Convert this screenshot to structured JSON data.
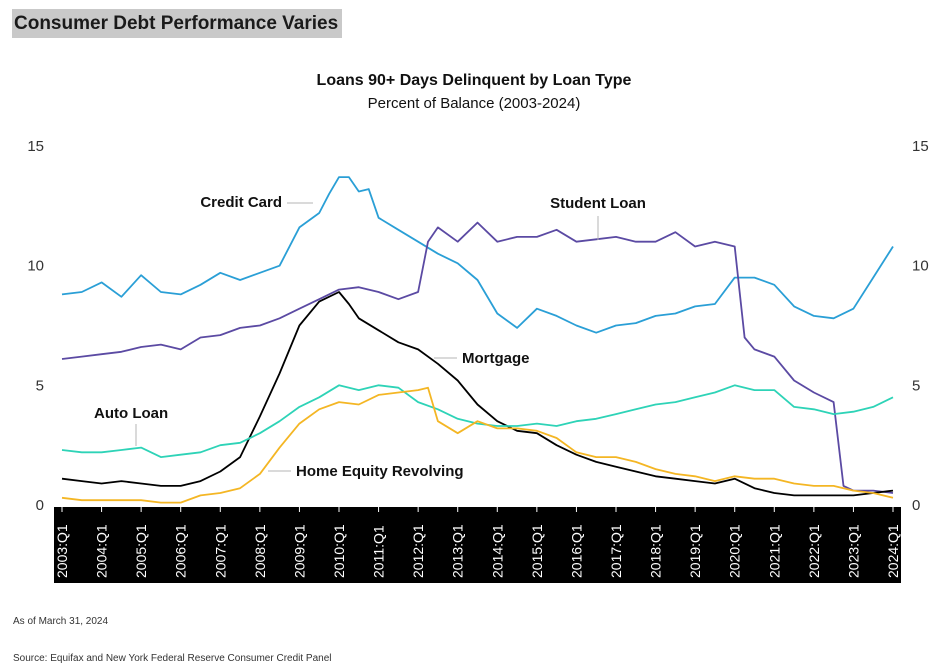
{
  "page": {
    "title": "Consumer Debt Performance Varies",
    "as_of": "As of March 31, 2024",
    "source": "Source: Equifax and New York Federal Reserve Consumer Credit Panel"
  },
  "chart_data": {
    "type": "line",
    "title": "Loans 90+ Days Delinquent by Loan Type",
    "subtitle": "Percent of Balance (2003-2024)",
    "ylim": [
      0,
      15
    ],
    "yticks": [
      0,
      5,
      10,
      15
    ],
    "x_start": "2003:Q1",
    "x_end": "2024:Q1",
    "x_tick_labels": [
      "2003:Q1",
      "2004:Q1",
      "2005:Q1",
      "2006:Q1",
      "2007:Q1",
      "2008:Q1",
      "2009:Q1",
      "2010:Q1",
      "2011:Q1",
      "2012:Q1",
      "2013:Q1",
      "2014:Q1",
      "2015:Q1",
      "2016:Q1",
      "2017:Q1",
      "2018:Q1",
      "2019:Q1",
      "2020:Q1",
      "2021:Q1",
      "2022:Q1",
      "2023:Q1",
      "2024:Q1"
    ],
    "colors": {
      "credit_card": "#2a9fd6",
      "student_loan": "#5b4aa3",
      "mortgage": "#000000",
      "auto_loan": "#2ed3b7",
      "home_equity_revolving": "#f4b624",
      "x_axis_band": "#000000"
    },
    "series": [
      {
        "name": "Credit Card",
        "color": "#2a9fd6",
        "points": [
          [
            "2003:Q1",
            8.8
          ],
          [
            "2003:Q3",
            8.9
          ],
          [
            "2004:Q1",
            9.3
          ],
          [
            "2004:Q3",
            8.7
          ],
          [
            "2005:Q1",
            9.6
          ],
          [
            "2005:Q3",
            8.9
          ],
          [
            "2006:Q1",
            8.8
          ],
          [
            "2006:Q3",
            9.2
          ],
          [
            "2007:Q1",
            9.7
          ],
          [
            "2007:Q3",
            9.4
          ],
          [
            "2008:Q1",
            9.7
          ],
          [
            "2008:Q3",
            10.0
          ],
          [
            "2009:Q1",
            11.6
          ],
          [
            "2009:Q3",
            12.2
          ],
          [
            "2009:Q4",
            13.0
          ],
          [
            "2010:Q1",
            13.7
          ],
          [
            "2010:Q2",
            13.7
          ],
          [
            "2010:Q3",
            13.1
          ],
          [
            "2010:Q4",
            13.2
          ],
          [
            "2011:Q1",
            12.0
          ],
          [
            "2011:Q3",
            11.5
          ],
          [
            "2012:Q1",
            11.0
          ],
          [
            "2012:Q3",
            10.5
          ],
          [
            "2013:Q1",
            10.1
          ],
          [
            "2013:Q3",
            9.4
          ],
          [
            "2014:Q1",
            8.0
          ],
          [
            "2014:Q3",
            7.4
          ],
          [
            "2015:Q1",
            8.2
          ],
          [
            "2015:Q3",
            7.9
          ],
          [
            "2016:Q1",
            7.5
          ],
          [
            "2016:Q3",
            7.2
          ],
          [
            "2017:Q1",
            7.5
          ],
          [
            "2017:Q3",
            7.6
          ],
          [
            "2018:Q1",
            7.9
          ],
          [
            "2018:Q3",
            8.0
          ],
          [
            "2019:Q1",
            8.3
          ],
          [
            "2019:Q3",
            8.4
          ],
          [
            "2020:Q1",
            9.5
          ],
          [
            "2020:Q3",
            9.5
          ],
          [
            "2021:Q1",
            9.2
          ],
          [
            "2021:Q3",
            8.3
          ],
          [
            "2022:Q1",
            7.9
          ],
          [
            "2022:Q3",
            7.8
          ],
          [
            "2023:Q1",
            8.2
          ],
          [
            "2023:Q3",
            9.5
          ],
          [
            "2024:Q1",
            10.8
          ]
        ]
      },
      {
        "name": "Student Loan",
        "color": "#5b4aa3",
        "points": [
          [
            "2003:Q1",
            6.1
          ],
          [
            "2003:Q3",
            6.2
          ],
          [
            "2004:Q1",
            6.3
          ],
          [
            "2004:Q3",
            6.4
          ],
          [
            "2005:Q1",
            6.6
          ],
          [
            "2005:Q3",
            6.7
          ],
          [
            "2006:Q1",
            6.5
          ],
          [
            "2006:Q3",
            7.0
          ],
          [
            "2007:Q1",
            7.1
          ],
          [
            "2007:Q3",
            7.4
          ],
          [
            "2008:Q1",
            7.5
          ],
          [
            "2008:Q3",
            7.8
          ],
          [
            "2009:Q1",
            8.2
          ],
          [
            "2009:Q3",
            8.6
          ],
          [
            "2010:Q1",
            9.0
          ],
          [
            "2010:Q3",
            9.1
          ],
          [
            "2011:Q1",
            8.9
          ],
          [
            "2011:Q3",
            8.6
          ],
          [
            "2012:Q1",
            8.9
          ],
          [
            "2012:Q2",
            11.0
          ],
          [
            "2012:Q3",
            11.6
          ],
          [
            "2013:Q1",
            11.0
          ],
          [
            "2013:Q3",
            11.8
          ],
          [
            "2014:Q1",
            11.0
          ],
          [
            "2014:Q3",
            11.2
          ],
          [
            "2015:Q1",
            11.2
          ],
          [
            "2015:Q3",
            11.5
          ],
          [
            "2016:Q1",
            11.0
          ],
          [
            "2016:Q3",
            11.1
          ],
          [
            "2017:Q1",
            11.2
          ],
          [
            "2017:Q3",
            11.0
          ],
          [
            "2018:Q1",
            11.0
          ],
          [
            "2018:Q3",
            11.4
          ],
          [
            "2019:Q1",
            10.8
          ],
          [
            "2019:Q3",
            11.0
          ],
          [
            "2020:Q1",
            10.8
          ],
          [
            "2020:Q2",
            7.0
          ],
          [
            "2020:Q3",
            6.5
          ],
          [
            "2021:Q1",
            6.2
          ],
          [
            "2021:Q3",
            5.2
          ],
          [
            "2022:Q1",
            4.7
          ],
          [
            "2022:Q3",
            4.3
          ],
          [
            "2022:Q4",
            0.8
          ],
          [
            "2023:Q1",
            0.6
          ],
          [
            "2023:Q3",
            0.6
          ],
          [
            "2024:Q1",
            0.5
          ]
        ]
      },
      {
        "name": "Mortgage",
        "color": "#000000",
        "points": [
          [
            "2003:Q1",
            1.1
          ],
          [
            "2003:Q3",
            1.0
          ],
          [
            "2004:Q1",
            0.9
          ],
          [
            "2004:Q3",
            1.0
          ],
          [
            "2005:Q1",
            0.9
          ],
          [
            "2005:Q3",
            0.8
          ],
          [
            "2006:Q1",
            0.8
          ],
          [
            "2006:Q3",
            1.0
          ],
          [
            "2007:Q1",
            1.4
          ],
          [
            "2007:Q3",
            2.0
          ],
          [
            "2008:Q1",
            3.7
          ],
          [
            "2008:Q3",
            5.5
          ],
          [
            "2009:Q1",
            7.5
          ],
          [
            "2009:Q3",
            8.5
          ],
          [
            "2010:Q1",
            8.9
          ],
          [
            "2010:Q2",
            8.4
          ],
          [
            "2010:Q3",
            7.8
          ],
          [
            "2011:Q1",
            7.3
          ],
          [
            "2011:Q3",
            6.8
          ],
          [
            "2012:Q1",
            6.5
          ],
          [
            "2012:Q3",
            5.9
          ],
          [
            "2013:Q1",
            5.2
          ],
          [
            "2013:Q3",
            4.2
          ],
          [
            "2014:Q1",
            3.5
          ],
          [
            "2014:Q3",
            3.1
          ],
          [
            "2015:Q1",
            3.0
          ],
          [
            "2015:Q3",
            2.5
          ],
          [
            "2016:Q1",
            2.1
          ],
          [
            "2016:Q3",
            1.8
          ],
          [
            "2017:Q1",
            1.6
          ],
          [
            "2017:Q3",
            1.4
          ],
          [
            "2018:Q1",
            1.2
          ],
          [
            "2018:Q3",
            1.1
          ],
          [
            "2019:Q1",
            1.0
          ],
          [
            "2019:Q3",
            0.9
          ],
          [
            "2020:Q1",
            1.1
          ],
          [
            "2020:Q3",
            0.7
          ],
          [
            "2021:Q1",
            0.5
          ],
          [
            "2021:Q3",
            0.4
          ],
          [
            "2022:Q1",
            0.4
          ],
          [
            "2022:Q3",
            0.4
          ],
          [
            "2023:Q1",
            0.4
          ],
          [
            "2023:Q3",
            0.5
          ],
          [
            "2024:Q1",
            0.6
          ]
        ]
      },
      {
        "name": "Auto Loan",
        "color": "#2ed3b7",
        "points": [
          [
            "2003:Q1",
            2.3
          ],
          [
            "2003:Q3",
            2.2
          ],
          [
            "2004:Q1",
            2.2
          ],
          [
            "2004:Q3",
            2.3
          ],
          [
            "2005:Q1",
            2.4
          ],
          [
            "2005:Q3",
            2.0
          ],
          [
            "2006:Q1",
            2.1
          ],
          [
            "2006:Q3",
            2.2
          ],
          [
            "2007:Q1",
            2.5
          ],
          [
            "2007:Q3",
            2.6
          ],
          [
            "2008:Q1",
            3.0
          ],
          [
            "2008:Q3",
            3.5
          ],
          [
            "2009:Q1",
            4.1
          ],
          [
            "2009:Q3",
            4.5
          ],
          [
            "2010:Q1",
            5.0
          ],
          [
            "2010:Q3",
            4.8
          ],
          [
            "2011:Q1",
            5.0
          ],
          [
            "2011:Q3",
            4.9
          ],
          [
            "2012:Q1",
            4.3
          ],
          [
            "2012:Q3",
            4.0
          ],
          [
            "2013:Q1",
            3.6
          ],
          [
            "2013:Q3",
            3.4
          ],
          [
            "2014:Q1",
            3.3
          ],
          [
            "2014:Q3",
            3.3
          ],
          [
            "2015:Q1",
            3.4
          ],
          [
            "2015:Q3",
            3.3
          ],
          [
            "2016:Q1",
            3.5
          ],
          [
            "2016:Q3",
            3.6
          ],
          [
            "2017:Q1",
            3.8
          ],
          [
            "2017:Q3",
            4.0
          ],
          [
            "2018:Q1",
            4.2
          ],
          [
            "2018:Q3",
            4.3
          ],
          [
            "2019:Q1",
            4.5
          ],
          [
            "2019:Q3",
            4.7
          ],
          [
            "2020:Q1",
            5.0
          ],
          [
            "2020:Q3",
            4.8
          ],
          [
            "2021:Q1",
            4.8
          ],
          [
            "2021:Q3",
            4.1
          ],
          [
            "2022:Q1",
            4.0
          ],
          [
            "2022:Q3",
            3.8
          ],
          [
            "2023:Q1",
            3.9
          ],
          [
            "2023:Q3",
            4.1
          ],
          [
            "2024:Q1",
            4.5
          ]
        ]
      },
      {
        "name": "Home Equity Revolving",
        "color": "#f4b624",
        "points": [
          [
            "2003:Q1",
            0.3
          ],
          [
            "2003:Q3",
            0.2
          ],
          [
            "2004:Q1",
            0.2
          ],
          [
            "2004:Q3",
            0.2
          ],
          [
            "2005:Q1",
            0.2
          ],
          [
            "2005:Q3",
            0.1
          ],
          [
            "2006:Q1",
            0.1
          ],
          [
            "2006:Q3",
            0.4
          ],
          [
            "2007:Q1",
            0.5
          ],
          [
            "2007:Q3",
            0.7
          ],
          [
            "2008:Q1",
            1.3
          ],
          [
            "2008:Q3",
            2.4
          ],
          [
            "2009:Q1",
            3.4
          ],
          [
            "2009:Q3",
            4.0
          ],
          [
            "2010:Q1",
            4.3
          ],
          [
            "2010:Q3",
            4.2
          ],
          [
            "2011:Q1",
            4.6
          ],
          [
            "2011:Q3",
            4.7
          ],
          [
            "2012:Q1",
            4.8
          ],
          [
            "2012:Q2",
            4.9
          ],
          [
            "2012:Q3",
            3.5
          ],
          [
            "2013:Q1",
            3.0
          ],
          [
            "2013:Q3",
            3.5
          ],
          [
            "2014:Q1",
            3.2
          ],
          [
            "2014:Q3",
            3.2
          ],
          [
            "2015:Q1",
            3.1
          ],
          [
            "2015:Q3",
            2.8
          ],
          [
            "2016:Q1",
            2.2
          ],
          [
            "2016:Q3",
            2.0
          ],
          [
            "2017:Q1",
            2.0
          ],
          [
            "2017:Q3",
            1.8
          ],
          [
            "2018:Q1",
            1.5
          ],
          [
            "2018:Q3",
            1.3
          ],
          [
            "2019:Q1",
            1.2
          ],
          [
            "2019:Q3",
            1.0
          ],
          [
            "2020:Q1",
            1.2
          ],
          [
            "2020:Q3",
            1.1
          ],
          [
            "2021:Q1",
            1.1
          ],
          [
            "2021:Q3",
            0.9
          ],
          [
            "2022:Q1",
            0.8
          ],
          [
            "2022:Q3",
            0.8
          ],
          [
            "2023:Q1",
            0.6
          ],
          [
            "2023:Q3",
            0.5
          ],
          [
            "2024:Q1",
            0.3
          ]
        ]
      }
    ],
    "annotations": [
      "Credit Card",
      "Student Loan",
      "Mortgage",
      "Auto Loan",
      "Home Equity Revolving"
    ],
    "legend": "none (inline labels)",
    "grid": false
  }
}
